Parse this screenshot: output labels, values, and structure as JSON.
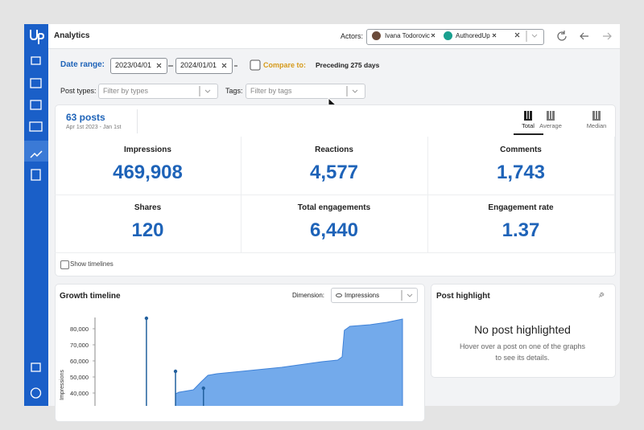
{
  "header": {
    "app": "Analytics",
    "actors_label": "Actors:",
    "actors": [
      "Ivana Todorovic",
      "AuthoredUp"
    ]
  },
  "filters": {
    "date_range_label": "Date range:",
    "start": "2023/04/01",
    "end": "2024/01/01",
    "compare_label": "Compare to:",
    "compare_value": "Preceding 275 days",
    "post_types_label": "Post types:",
    "post_types_placeholder": "Filter by types",
    "tags_label": "Tags:",
    "tags_placeholder": "Filter by tags"
  },
  "summary": {
    "posts": "63 posts",
    "period": "Apr 1st 2023 - Jan 1st",
    "views": [
      "Total",
      "Average",
      "Median"
    ],
    "metrics": [
      {
        "label": "Impressions",
        "value": "469,908"
      },
      {
        "label": "Reactions",
        "value": "4,577"
      },
      {
        "label": "Comments",
        "value": "1,743"
      },
      {
        "label": "Shares",
        "value": "120"
      },
      {
        "label": "Total engagements",
        "value": "6,440"
      },
      {
        "label": "Engagement rate",
        "value": "1.37"
      }
    ],
    "show_timelines": "Show timelines"
  },
  "chart_data": {
    "type": "area",
    "title": "Growth timeline",
    "dimension_label": "Dimension:",
    "dimension": "Impressions",
    "y_label": "Impressions",
    "xlim": [
      0,
      275
    ],
    "ylim": [
      35000,
      87000
    ],
    "grid": false,
    "yticks": [
      {
        "value": 40000,
        "label": "40,000"
      },
      {
        "value": 50000,
        "label": "50,000"
      },
      {
        "value": 60000,
        "label": "60,000"
      },
      {
        "value": 70000,
        "label": "70,000"
      },
      {
        "value": 80000,
        "label": "80,000"
      }
    ],
    "series": [
      {
        "kind": "area",
        "color": "#5b9be8",
        "x": [
          72,
          75,
          88,
          95,
          101,
          109,
          131,
          167,
          203,
          217,
          221,
          223,
          228,
          246,
          261,
          275
        ],
        "values": [
          39500,
          40500,
          42000,
          47000,
          51000,
          52000,
          53500,
          56000,
          59500,
          60500,
          62500,
          79000,
          81500,
          82500,
          84000,
          86000
        ]
      },
      {
        "kind": "stem",
        "color": "#22609e",
        "x": [
          46,
          72,
          97
        ],
        "values": [
          86500,
          53500,
          43000
        ]
      }
    ]
  },
  "highlight": {
    "title": "Post highlight",
    "heading": "No post highlighted",
    "text": [
      "Hover over a post on one of the graphs",
      "to see its details."
    ]
  }
}
